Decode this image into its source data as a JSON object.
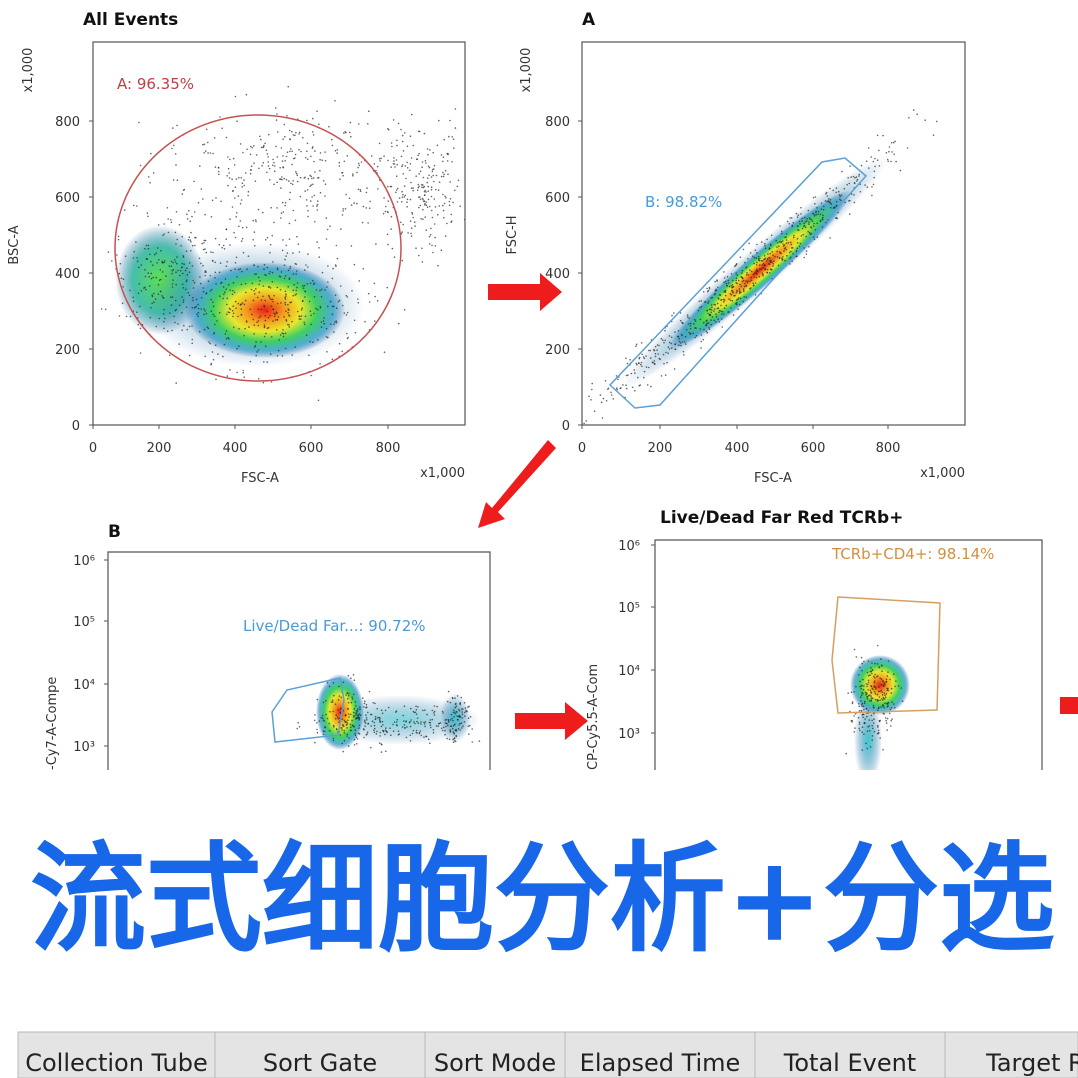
{
  "plots": [
    {
      "title": "All Events",
      "y_axis_label": "BSC-A",
      "x_axis_label": "FSC-A",
      "y_multiplier": "x1,000",
      "x_multiplier": "x1,000",
      "y_ticks": [
        "0",
        "200",
        "400",
        "600",
        "800"
      ],
      "x_ticks": [
        "0",
        "200",
        "400",
        "600",
        "800"
      ],
      "gate_label": "A: 96.35%"
    },
    {
      "title": "A",
      "y_axis_label": "FSC-H",
      "x_axis_label": "FSC-A",
      "y_multiplier": "x1,000",
      "x_multiplier": "x1,000",
      "y_ticks": [
        "0",
        "200",
        "400",
        "600",
        "800"
      ],
      "x_ticks": [
        "0",
        "200",
        "400",
        "600",
        "800"
      ],
      "gate_label": "B: 98.82%"
    },
    {
      "title": "B",
      "y_axis_label": "-Cy7-A-Compe",
      "y_ticks": [
        "10⁶",
        "10⁵",
        "10⁴",
        "10³"
      ],
      "gate_label": "Live/Dead Far...: 90.72%"
    },
    {
      "title": "Live/Dead Far Red TCRb+",
      "y_axis_label": "CP-Cy5.5-A-Com",
      "y_ticks": [
        "10⁶",
        "10⁵",
        "10⁴",
        "10³"
      ],
      "gate_label": "TCRb+CD4+: 98.14%"
    }
  ],
  "banner": {
    "title": "流式细胞分析+分选"
  },
  "table": {
    "headers": [
      "Collection Tube",
      "Sort Gate",
      "Sort Mode",
      "Elapsed Time",
      "Total Event",
      "Target Ra"
    ]
  }
}
